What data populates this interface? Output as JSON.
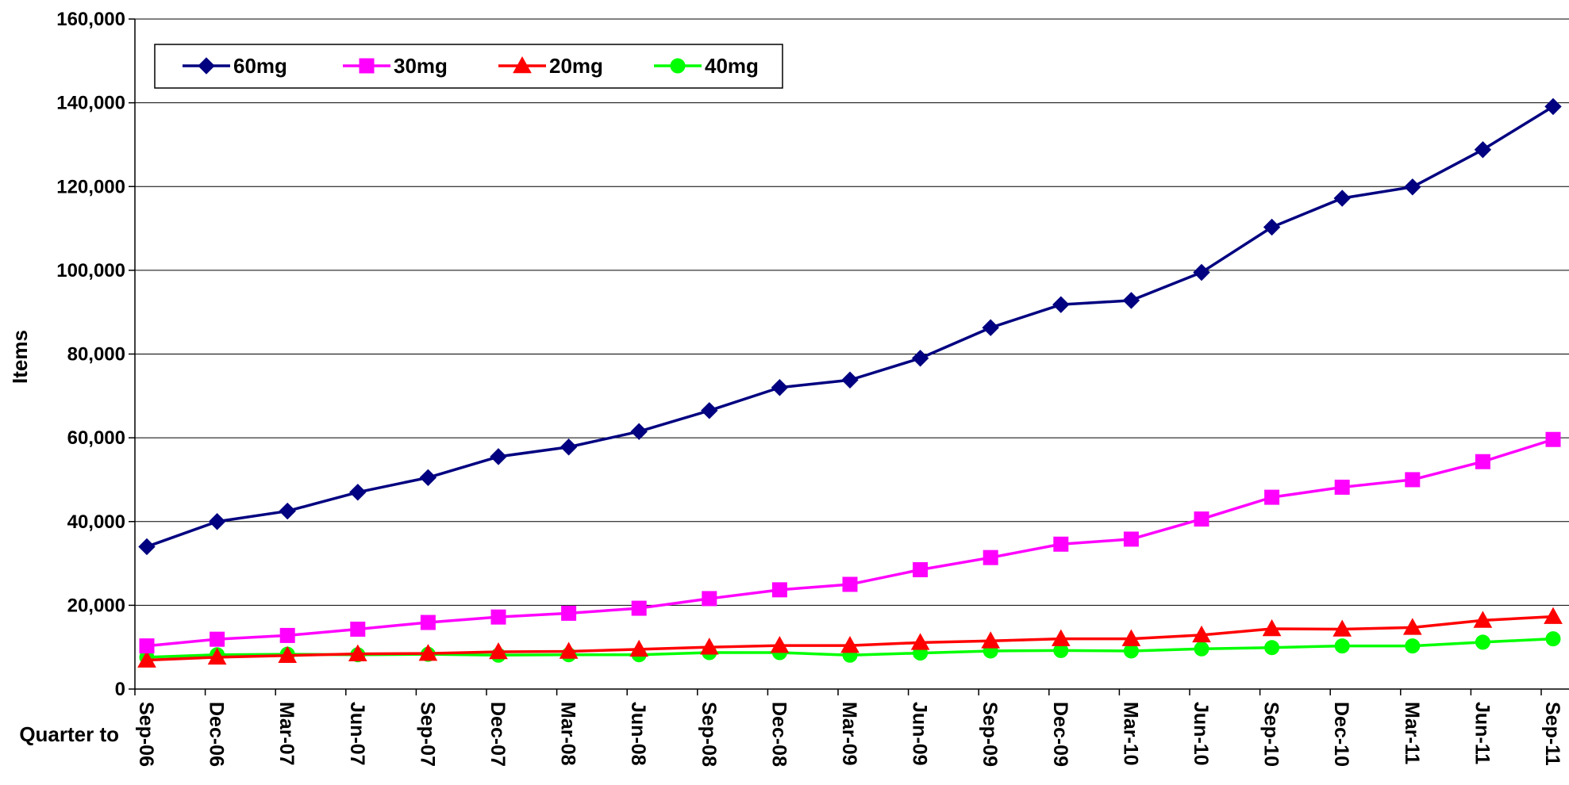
{
  "chart_data": {
    "type": "line",
    "ylabel": "Items",
    "xlabel": "Quarter to",
    "ylim": [
      0,
      160000
    ],
    "yticks": [
      0,
      20000,
      40000,
      60000,
      80000,
      100000,
      120000,
      140000,
      160000
    ],
    "ytick_labels": [
      "0",
      "20,000",
      "40,000",
      "60,000",
      "80,000",
      "100,000",
      "120,000",
      "140,000",
      "160,000"
    ],
    "grid": "horizontal",
    "legend_position": "top-left",
    "categories": [
      "Sep-06",
      "Dec-06",
      "Mar-07",
      "Jun-07",
      "Sep-07",
      "Dec-07",
      "Mar-08",
      "Jun-08",
      "Sep-08",
      "Dec-08",
      "Mar-09",
      "Jun-09",
      "Sep-09",
      "Dec-09",
      "Mar-10",
      "Jun-10",
      "Sep-10",
      "Dec-10",
      "Mar-11",
      "Jun-11",
      "Sep-11"
    ],
    "series": [
      {
        "name": "60mg",
        "color": "#000080",
        "marker": "diamond",
        "values": [
          34000,
          40000,
          42500,
          47000,
          50500,
          55500,
          57800,
          61500,
          66500,
          72000,
          73800,
          79000,
          86300,
          91800,
          92800,
          99500,
          110300,
          117200,
          119900,
          128800,
          139100
        ]
      },
      {
        "name": "30mg",
        "color": "#FF00FF",
        "marker": "square",
        "values": [
          10300,
          11900,
          12800,
          14300,
          15900,
          17200,
          18100,
          19300,
          21600,
          23700,
          25000,
          28500,
          31400,
          34600,
          35800,
          40600,
          45800,
          48200,
          50000,
          54300,
          59600
        ]
      },
      {
        "name": "20mg",
        "color": "#FF0000",
        "marker": "triangle",
        "values": [
          6900,
          7600,
          8000,
          8400,
          8500,
          8900,
          9000,
          9500,
          10000,
          10400,
          10400,
          11100,
          11500,
          12000,
          12000,
          12900,
          14400,
          14300,
          14700,
          16400,
          17300
        ]
      },
      {
        "name": "40mg",
        "color": "#00FF00",
        "marker": "circle",
        "values": [
          7600,
          8200,
          8300,
          8200,
          8300,
          8100,
          8200,
          8200,
          8700,
          8700,
          8100,
          8600,
          9100,
          9200,
          9100,
          9600,
          9900,
          10300,
          10300,
          11200,
          12000
        ]
      }
    ]
  }
}
